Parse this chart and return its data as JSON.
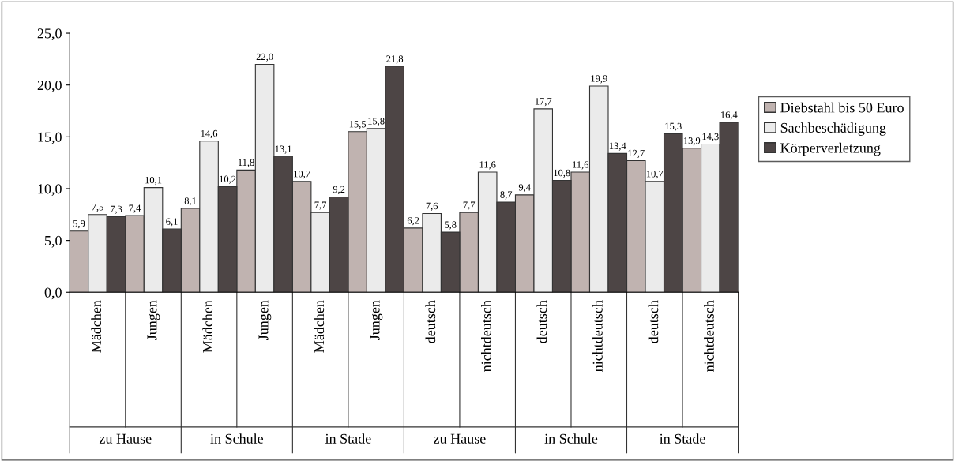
{
  "chart_data": {
    "type": "bar",
    "categories": [
      "Mädchen",
      "Jungen",
      "Mädchen",
      "Jungen",
      "Mädchen",
      "Jungen",
      "deutsch",
      "nichtdeutsch",
      "deutsch",
      "nichtdeutsch",
      "deutsch",
      "nichtdeutsch"
    ],
    "series": [
      {
        "name": "Diebstahl bis 50 Euro",
        "color": "#c0b3b0",
        "values": [
          5.9,
          7.4,
          8.1,
          11.8,
          10.7,
          15.5,
          6.2,
          7.7,
          9.4,
          11.6,
          12.7,
          13.9
        ],
        "value_labels": [
          "5,9",
          "7,4",
          "8,1",
          "11,8",
          "10,7",
          "15,5",
          "6,2",
          "7,7",
          "9,4",
          "11,6",
          "12,7",
          "13,9"
        ]
      },
      {
        "name": "Sachbeschädigung",
        "color": "#ebebeb",
        "values": [
          7.5,
          10.1,
          14.6,
          22.0,
          7.7,
          15.8,
          7.6,
          11.6,
          17.7,
          19.9,
          10.7,
          14.3
        ],
        "value_labels": [
          "7,5",
          "10,1",
          "14,6",
          "22,0",
          "7,7",
          "15,8",
          "7,6",
          "11,6",
          "17,7",
          "19,9",
          "10,7",
          "14,3"
        ]
      },
      {
        "name": "Körperverletzung",
        "color": "#4d4545",
        "values": [
          7.3,
          6.1,
          10.2,
          13.1,
          9.2,
          21.8,
          5.8,
          8.7,
          10.8,
          13.4,
          15.3,
          16.4
        ],
        "value_labels": [
          "7,3",
          "6,1",
          "10,2",
          "13,1",
          "9,2",
          "21,8",
          "5,8",
          "8,7",
          "10,8",
          "13,4",
          "15,3",
          "16,4"
        ]
      }
    ],
    "annotations": [
      "zu Hause",
      "in Schule",
      "in Stade",
      "zu Hause",
      "in Schule",
      "in Stade"
    ],
    "ylim": [
      0,
      25
    ],
    "yticks": [
      {
        "value": 0,
        "label": "0,0"
      },
      {
        "value": 5,
        "label": "5,0"
      },
      {
        "value": 10,
        "label": "10,0"
      },
      {
        "value": 15,
        "label": "15,0"
      },
      {
        "value": 20,
        "label": "20,0"
      },
      {
        "value": 25,
        "label": "25,0"
      }
    ],
    "grid": false,
    "legend": "right"
  }
}
